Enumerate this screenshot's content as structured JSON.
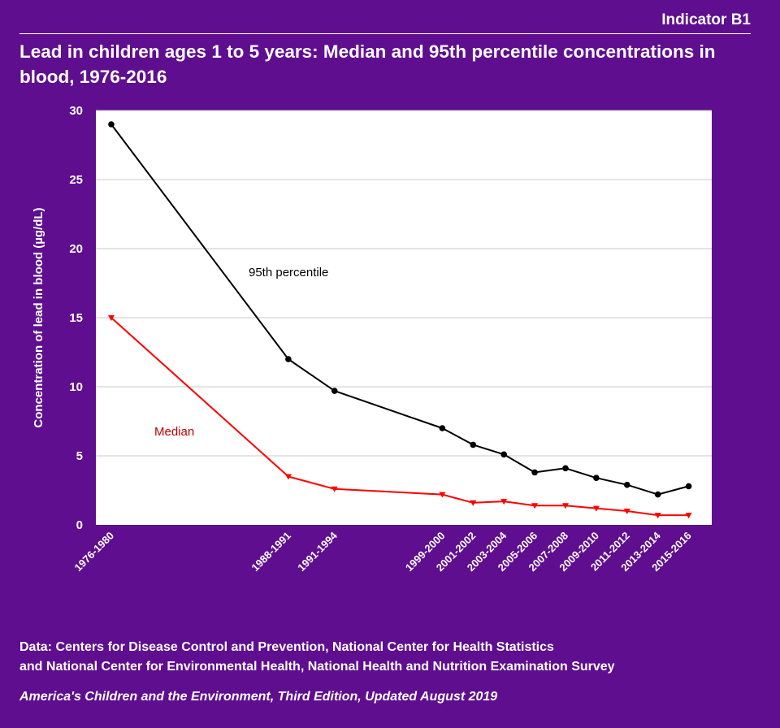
{
  "header": {
    "indicator": "Indicator B1",
    "title": "Lead in children ages 1 to 5 years: Median and 95th percentile concentrations in blood, 1976-2016"
  },
  "chart_data": {
    "type": "line",
    "title": "Lead in children ages 1 to 5 years: Median and 95th percentile concentrations in blood, 1976-2016",
    "xlabel": "",
    "ylabel": "Concentration of lead in blood (µg/dL)",
    "ylim": [
      0,
      30
    ],
    "yticks": [
      0,
      5,
      10,
      15,
      20,
      25,
      30
    ],
    "grid": true,
    "categories": [
      "1976-1980",
      "1988-1991",
      "1991-1994",
      "1999-2000",
      "2001-2002",
      "2003-2004",
      "2005-2006",
      "2007-2008",
      "2009-2010",
      "2011-2012",
      "2013-2014",
      "2015-2016"
    ],
    "x": [
      1978,
      1989.5,
      1992.5,
      1999.5,
      2001.5,
      2003.5,
      2005.5,
      2007.5,
      2009.5,
      2011.5,
      2013.5,
      2015.5
    ],
    "series": [
      {
        "name": "95th percentile",
        "color": "#000000",
        "marker": "circle",
        "values": [
          29.0,
          12.0,
          9.7,
          7.0,
          5.8,
          5.1,
          3.8,
          4.1,
          3.4,
          2.9,
          2.2,
          2.8
        ]
      },
      {
        "name": "Median",
        "color": "#ff0000",
        "label_color": "#c00000",
        "marker": "triangle-down",
        "values": [
          15.0,
          3.5,
          2.6,
          2.2,
          1.6,
          1.7,
          1.4,
          1.4,
          1.2,
          1.0,
          0.7,
          0.7
        ]
      }
    ],
    "annotations": [
      "95th percentile",
      "Median"
    ]
  },
  "source": {
    "line1": "Data: Centers for Disease Control and Prevention, National Center for Health Statistics",
    "line2": "and National Center for Environmental Health, National Health and Nutrition Examination Survey"
  },
  "footer": "America's Children and the Environment, Third Edition, Updated August 2019",
  "colors": {
    "background": "#5f0e8f",
    "plot_area": "#ffffff",
    "gridline": "#c8c8c8"
  }
}
